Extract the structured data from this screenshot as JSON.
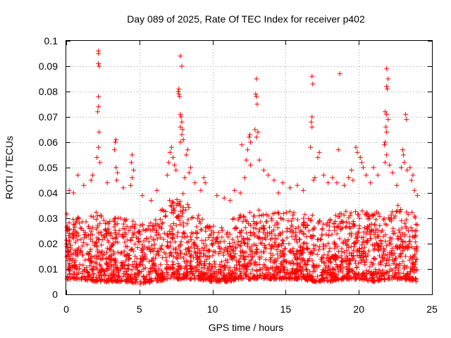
{
  "chart_data": {
    "type": "scatter",
    "title": "Day 089 of 2025, Rate Of TEC Index for receiver p402",
    "xlabel": "GPS time / hours",
    "ylabel": "ROTI / TECUs",
    "xlim": [
      0,
      25
    ],
    "ylim": [
      0,
      0.1
    ],
    "xticks": [
      0,
      5,
      10,
      15,
      20,
      25
    ],
    "xtick_labels": [
      "0",
      "5",
      "10",
      "15",
      "20",
      "25"
    ],
    "yticks": [
      0,
      0.01,
      0.02,
      0.03,
      0.04,
      0.05,
      0.06,
      0.07,
      0.08,
      0.09,
      0.1
    ],
    "ytick_labels": [
      "0",
      "0.01",
      "0.02",
      "0.03",
      "0.04",
      "0.05",
      "0.06",
      "0.07",
      "0.08",
      "0.09",
      "0.1"
    ],
    "grid": true,
    "marker": "plus",
    "color": "#ff0000",
    "series": [
      {
        "name": "ROTI",
        "points": [
          [
            2.2,
            0.096
          ],
          [
            2.2,
            0.095
          ],
          [
            2.2,
            0.091
          ],
          [
            2.25,
            0.09
          ],
          [
            2.2,
            0.078
          ],
          [
            2.2,
            0.074
          ],
          [
            2.15,
            0.072
          ],
          [
            2.25,
            0.064
          ],
          [
            2.2,
            0.058
          ],
          [
            2.1,
            0.054
          ],
          [
            2.3,
            0.052
          ],
          [
            3.4,
            0.061
          ],
          [
            3.35,
            0.06
          ],
          [
            3.3,
            0.057
          ],
          [
            3.4,
            0.05
          ],
          [
            3.5,
            0.048
          ],
          [
            3.45,
            0.045
          ],
          [
            4.5,
            0.055
          ],
          [
            4.45,
            0.052
          ],
          [
            4.6,
            0.049
          ],
          [
            4.5,
            0.046
          ],
          [
            4.4,
            0.043
          ],
          [
            0.8,
            0.047
          ],
          [
            1.7,
            0.045
          ],
          [
            1.8,
            0.047
          ],
          [
            1.2,
            0.043
          ],
          [
            0.5,
            0.04
          ],
          [
            0.2,
            0.041
          ],
          [
            2.8,
            0.044
          ],
          [
            3.9,
            0.042
          ],
          [
            5.2,
            0.039
          ],
          [
            5.8,
            0.037
          ],
          [
            6.2,
            0.041
          ],
          [
            7.8,
            0.094
          ],
          [
            7.9,
            0.09
          ],
          [
            7.7,
            0.081
          ],
          [
            7.65,
            0.08
          ],
          [
            7.7,
            0.079
          ],
          [
            7.75,
            0.078
          ],
          [
            7.8,
            0.071
          ],
          [
            7.85,
            0.07
          ],
          [
            7.9,
            0.068
          ],
          [
            7.8,
            0.066
          ],
          [
            7.95,
            0.065
          ],
          [
            7.9,
            0.063
          ],
          [
            7.8,
            0.06
          ],
          [
            8.0,
            0.061
          ],
          [
            7.2,
            0.058
          ],
          [
            7.1,
            0.056
          ],
          [
            7.3,
            0.054
          ],
          [
            7.0,
            0.052
          ],
          [
            7.4,
            0.051
          ],
          [
            8.3,
            0.057
          ],
          [
            8.2,
            0.055
          ],
          [
            8.5,
            0.05
          ],
          [
            8.4,
            0.048
          ],
          [
            7.5,
            0.049
          ],
          [
            6.9,
            0.047
          ],
          [
            8.1,
            0.046
          ],
          [
            8.8,
            0.044
          ],
          [
            9.4,
            0.046
          ],
          [
            9.5,
            0.044
          ],
          [
            9.2,
            0.041
          ],
          [
            10.3,
            0.039
          ],
          [
            10.8,
            0.038
          ],
          [
            11.5,
            0.041
          ],
          [
            11.9,
            0.04
          ],
          [
            11.2,
            0.037
          ],
          [
            12.0,
            0.059
          ],
          [
            12.5,
            0.062
          ],
          [
            12.55,
            0.063
          ],
          [
            12.6,
            0.06
          ],
          [
            12.4,
            0.057
          ],
          [
            12.3,
            0.053
          ],
          [
            12.6,
            0.051
          ],
          [
            13.0,
            0.085
          ],
          [
            12.95,
            0.079
          ],
          [
            13.0,
            0.078
          ],
          [
            13.05,
            0.075
          ],
          [
            12.9,
            0.065
          ],
          [
            13.1,
            0.064
          ],
          [
            13.0,
            0.062
          ],
          [
            13.2,
            0.053
          ],
          [
            13.5,
            0.049
          ],
          [
            13.8,
            0.047
          ],
          [
            12.2,
            0.046
          ],
          [
            14.2,
            0.045
          ],
          [
            14.8,
            0.044
          ],
          [
            15.3,
            0.042
          ],
          [
            15.8,
            0.043
          ],
          [
            16.2,
            0.041
          ],
          [
            14.5,
            0.04
          ],
          [
            16.8,
            0.086
          ],
          [
            16.85,
            0.083
          ],
          [
            16.8,
            0.07
          ],
          [
            16.75,
            0.068
          ],
          [
            16.8,
            0.066
          ],
          [
            16.7,
            0.058
          ],
          [
            17.3,
            0.056
          ],
          [
            17.2,
            0.054
          ],
          [
            17.6,
            0.047
          ],
          [
            17.0,
            0.046
          ],
          [
            17.9,
            0.044
          ],
          [
            16.9,
            0.045
          ],
          [
            18.7,
            0.087
          ],
          [
            18.6,
            0.057
          ],
          [
            18.2,
            0.046
          ],
          [
            18.5,
            0.044
          ],
          [
            19.0,
            0.043
          ],
          [
            19.3,
            0.046
          ],
          [
            19.5,
            0.049
          ],
          [
            19.8,
            0.058
          ],
          [
            19.9,
            0.056
          ],
          [
            20.1,
            0.054
          ],
          [
            20.2,
            0.052
          ],
          [
            20.3,
            0.05
          ],
          [
            19.6,
            0.045
          ],
          [
            20.5,
            0.047
          ],
          [
            21.0,
            0.05
          ],
          [
            21.3,
            0.047
          ],
          [
            20.8,
            0.044
          ],
          [
            21.9,
            0.089
          ],
          [
            22.0,
            0.085
          ],
          [
            21.9,
            0.082
          ],
          [
            21.95,
            0.081
          ],
          [
            21.8,
            0.072
          ],
          [
            21.9,
            0.071
          ],
          [
            22.0,
            0.069
          ],
          [
            21.85,
            0.066
          ],
          [
            21.9,
            0.064
          ],
          [
            21.8,
            0.06
          ],
          [
            21.75,
            0.059
          ],
          [
            21.9,
            0.055
          ],
          [
            21.8,
            0.052
          ],
          [
            22.1,
            0.051
          ],
          [
            22.3,
            0.048
          ],
          [
            23.0,
            0.057
          ],
          [
            23.05,
            0.055
          ],
          [
            23.1,
            0.052
          ],
          [
            22.9,
            0.05
          ],
          [
            23.3,
            0.049
          ],
          [
            23.5,
            0.05
          ],
          [
            23.7,
            0.047
          ],
          [
            23.2,
            0.071
          ],
          [
            23.25,
            0.069
          ],
          [
            23.6,
            0.045
          ],
          [
            22.6,
            0.043
          ],
          [
            23.8,
            0.041
          ],
          [
            24.0,
            0.039
          ]
        ],
        "band": {
          "hours": [
            0,
            1,
            2,
            3,
            4,
            5,
            6,
            7,
            8,
            9,
            10,
            11,
            12,
            13,
            14,
            15,
            16,
            17,
            18,
            19,
            20,
            21,
            22,
            23,
            24
          ],
          "low": [
            0.006,
            0.006,
            0.005,
            0.005,
            0.005,
            0.004,
            0.005,
            0.006,
            0.006,
            0.006,
            0.005,
            0.005,
            0.006,
            0.006,
            0.006,
            0.006,
            0.006,
            0.005,
            0.005,
            0.006,
            0.006,
            0.005,
            0.006,
            0.006,
            0.005
          ],
          "high": [
            0.032,
            0.03,
            0.033,
            0.031,
            0.03,
            0.028,
            0.029,
            0.038,
            0.04,
            0.032,
            0.027,
            0.028,
            0.033,
            0.034,
            0.032,
            0.033,
            0.032,
            0.031,
            0.03,
            0.033,
            0.035,
            0.033,
            0.036,
            0.035,
            0.031
          ],
          "count": 2600
        }
      }
    ]
  }
}
